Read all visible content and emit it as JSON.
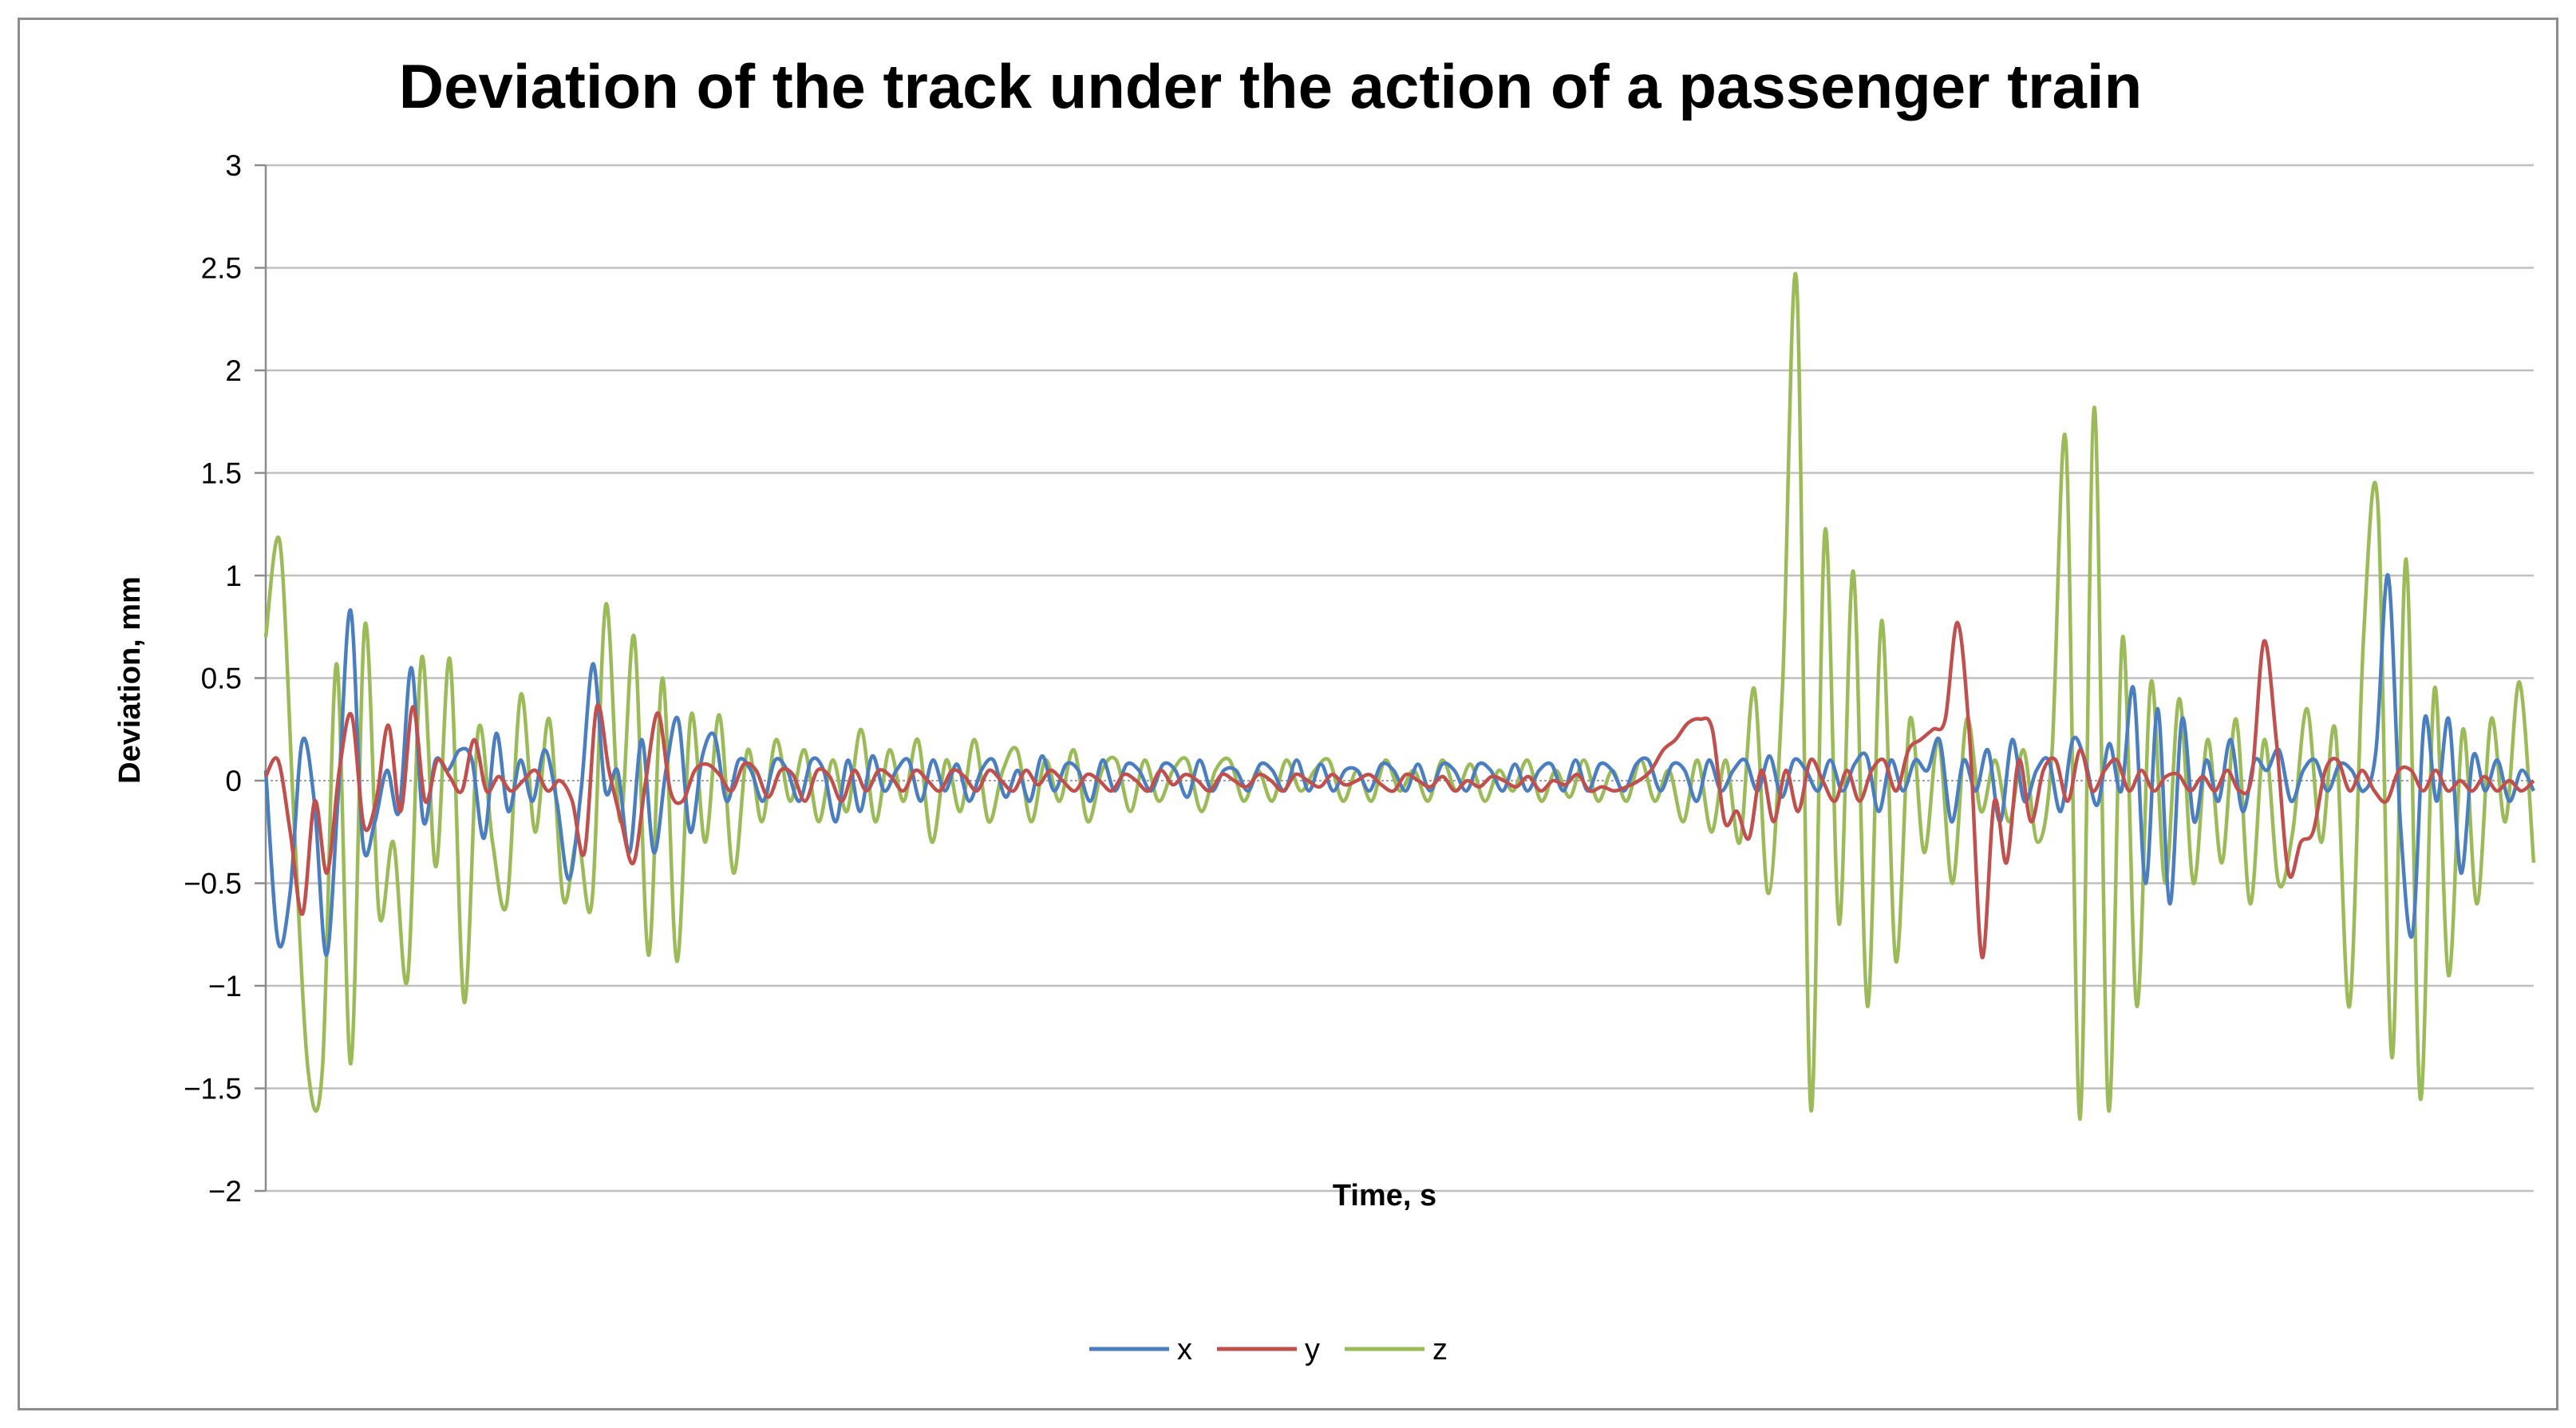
{
  "chart_data": {
    "type": "line",
    "title": "Deviation of the track under the action of a passenger train",
    "xlabel": "Time, s",
    "ylabel": "Deviation, mm",
    "ylim": [
      -2,
      3
    ],
    "yticks": [
      3,
      2.5,
      2,
      1.5,
      1,
      0.5,
      0,
      -0.5,
      -1,
      -1.5,
      -2
    ],
    "ytick_labels": [
      "3",
      "2.5",
      "2",
      "1.5",
      "1",
      "0.5",
      "0",
      "−0.5",
      "−1",
      "−1.5",
      "−2"
    ],
    "grid": true,
    "legend_position": "bottom",
    "x_tick_labels_shown": false,
    "series": [
      {
        "name": "x",
        "color": "#4a7ebf",
        "values": [
          0.05,
          -0.78,
          -0.55,
          0.19,
          -0.1,
          -0.85,
          -0.05,
          0.83,
          -0.3,
          -0.2,
          0.05,
          -0.15,
          0.55,
          -0.2,
          0.1,
          0.05,
          0.15,
          0.1,
          -0.28,
          0.23,
          -0.15,
          0.1,
          -0.1,
          0.15,
          -0.1,
          -0.48,
          -0.05,
          0.57,
          -0.05,
          0.05,
          -0.35,
          0.2,
          -0.35,
          0.05,
          0.3,
          -0.25,
          0.12,
          0.22,
          -0.1,
          0.1,
          0.05,
          -0.1,
          0.1,
          0.05,
          -0.1,
          0.1,
          0.05,
          -0.2,
          0.1,
          -0.15,
          0.12,
          -0.05,
          0.05,
          0.1,
          -0.1,
          0.1,
          -0.05,
          0.08,
          -0.1,
          0.05,
          0.1,
          -0.08,
          0.05,
          -0.1,
          0.12,
          -0.05,
          0.08,
          0.05,
          -0.1,
          0.1,
          -0.05,
          0.08,
          0.05,
          -0.05,
          0.08,
          0.05,
          -0.08,
          0.1,
          -0.05,
          0.05,
          0.05,
          -0.05,
          0.08,
          0.05,
          -0.05,
          0.1,
          -0.05,
          0.08,
          -0.05,
          0.05,
          0.05,
          -0.05,
          0.08,
          0.05,
          -0.05,
          0.08,
          -0.05,
          0.08,
          0.05,
          -0.05,
          0.08,
          0.05,
          -0.05,
          0.08,
          -0.05,
          0.05,
          0.08,
          -0.05,
          0.1,
          -0.05,
          0.08,
          0.05,
          -0.05,
          0.08,
          0.1,
          -0.05,
          0.08,
          0.05,
          -0.1,
          0.1,
          -0.05,
          0.05,
          0.1,
          -0.05,
          0.12,
          -0.08,
          0.1,
          0.05,
          -0.05,
          0.1,
          -0.05,
          0.08,
          0.12,
          -0.15,
          0.1,
          -0.05,
          0.1,
          0.05,
          0.2,
          -0.2,
          0.1,
          -0.05,
          0.15,
          -0.2,
          0.2,
          -0.1,
          0.05,
          0.1,
          -0.15,
          0.2,
          0.1,
          -0.12,
          0.18,
          -0.05,
          0.45,
          -0.5,
          0.35,
          -0.6,
          0.3,
          -0.2,
          0.1,
          -0.1,
          0.2,
          -0.15,
          0.1,
          0.05,
          0.15,
          -0.1,
          0.05,
          0.1,
          -0.05,
          0.08,
          0.05,
          -0.05,
          0.15,
          1.0,
          -0.2,
          -0.75,
          0.3,
          -0.1,
          0.3,
          -0.45,
          0.12,
          -0.05,
          0.1,
          -0.1,
          0.05,
          -0.05
        ]
      },
      {
        "name": "y",
        "color": "#c0504d",
        "values": [
          0.02,
          0.1,
          -0.25,
          -0.65,
          -0.1,
          -0.45,
          0.05,
          0.32,
          -0.22,
          -0.1,
          0.27,
          -0.15,
          0.36,
          -0.1,
          0.1,
          0.02,
          -0.05,
          0.2,
          -0.05,
          0.02,
          -0.05,
          0.0,
          0.05,
          -0.05,
          0.0,
          -0.1,
          -0.35,
          0.36,
          0.05,
          -0.2,
          -0.4,
          0.0,
          0.33,
          -0.05,
          -0.1,
          0.05,
          0.08,
          0.03,
          -0.05,
          0.08,
          0.05,
          -0.08,
          0.05,
          0.03,
          -0.1,
          0.05,
          0.02,
          -0.1,
          0.05,
          -0.05,
          0.05,
          0.02,
          -0.05,
          0.05,
          0.0,
          -0.05,
          0.05,
          0.02,
          -0.05,
          0.05,
          0.0,
          -0.05,
          0.05,
          -0.02,
          0.05,
          0.0,
          -0.05,
          0.03,
          0.0,
          -0.05,
          0.03,
          0.0,
          -0.05,
          0.05,
          -0.02,
          0.03,
          0.0,
          -0.05,
          0.03,
          0.0,
          -0.03,
          0.03,
          0.0,
          -0.05,
          0.03,
          0.0,
          -0.03,
          0.03,
          -0.02,
          0.0,
          0.03,
          -0.02,
          -0.05,
          0.03,
          0.0,
          -0.03,
          0.02,
          -0.05,
          0.0,
          -0.03,
          0.02,
          0.0,
          -0.03,
          0.02,
          -0.05,
          0.0,
          -0.02,
          0.03,
          -0.05,
          -0.03,
          -0.05,
          -0.03,
          0.0,
          0.05,
          0.15,
          0.2,
          0.28,
          0.3,
          0.25,
          -0.2,
          -0.15,
          -0.28,
          0.05,
          -0.2,
          0.05,
          -0.15,
          0.1,
          0.0,
          -0.1,
          0.05,
          -0.1,
          0.05,
          0.1,
          -0.05,
          0.15,
          0.2,
          0.25,
          0.3,
          0.77,
          0.2,
          -0.86,
          -0.1,
          -0.4,
          0.1,
          -0.2,
          0.05,
          0.1,
          -0.1,
          0.15,
          -0.05,
          0.05,
          0.1,
          -0.05,
          0.05,
          -0.05,
          0.02,
          0.03,
          -0.05,
          0.02,
          -0.05,
          0.05,
          -0.05,
          0.02,
          0.68,
          0.2,
          -0.45,
          -0.3,
          -0.25,
          0.05,
          0.1,
          -0.05,
          0.05,
          -0.05,
          -0.1,
          0.05,
          0.05,
          -0.05,
          0.05,
          -0.05,
          0.0,
          -0.05,
          0.02,
          -0.05,
          0.0,
          -0.05,
          0.0
        ]
      },
      {
        "name": "z",
        "color": "#9bbb59",
        "values": [
          0.7,
          1.16,
          -0.2,
          -1.42,
          -1.4,
          0.57,
          -1.38,
          0.76,
          -0.65,
          -0.3,
          -0.97,
          0.6,
          -0.42,
          0.59,
          -1.08,
          0.25,
          -0.3,
          -0.6,
          0.42,
          -0.25,
          0.3,
          -0.58,
          -0.28,
          -0.6,
          0.86,
          -0.2,
          0.7,
          -0.85,
          0.5,
          -0.88,
          0.32,
          -0.3,
          0.32,
          -0.45,
          0.15,
          -0.2,
          0.2,
          -0.1,
          0.15,
          -0.2,
          0.1,
          -0.15,
          0.25,
          -0.2,
          0.15,
          -0.1,
          0.2,
          -0.3,
          0.1,
          -0.15,
          0.2,
          -0.2,
          0.05,
          0.15,
          -0.2,
          0.1,
          -0.1,
          0.15,
          -0.2,
          0.05,
          0.1,
          -0.15,
          0.1,
          -0.1,
          0.05,
          0.1,
          -0.15,
          0.05,
          0.1,
          -0.1,
          0.05,
          -0.1,
          0.1,
          -0.05,
          0.05,
          0.1,
          -0.1,
          0.05,
          -0.1,
          0.1,
          -0.05,
          0.05,
          -0.1,
          0.1,
          -0.05,
          0.08,
          -0.1,
          0.05,
          -0.05,
          0.1,
          -0.1,
          0.05,
          -0.08,
          0.1,
          -0.1,
          0.05,
          -0.1,
          0.1,
          -0.1,
          0.05,
          -0.2,
          0.1,
          -0.25,
          0.1,
          -0.3,
          0.45,
          -0.55,
          0.45,
          2.43,
          -1.6,
          1.22,
          -0.7,
          1.02,
          -1.1,
          0.78,
          -0.88,
          0.3,
          -0.35,
          0.2,
          -0.5,
          0.3,
          -0.15,
          0.1,
          -0.2,
          0.15,
          -0.3,
          0.12,
          1.65,
          -1.65,
          1.82,
          -1.6,
          0.7,
          -1.1,
          0.48,
          -0.5,
          0.4,
          -0.5,
          0.2,
          -0.4,
          0.3,
          -0.6,
          0.2,
          -0.5,
          -0.25,
          0.35,
          -0.3,
          0.25,
          -1.1,
          0.7,
          1.35,
          -1.35,
          1.08,
          -1.55,
          0.45,
          -0.95,
          0.25,
          -0.6,
          0.3,
          -0.2,
          0.48,
          -0.4
        ]
      }
    ]
  }
}
